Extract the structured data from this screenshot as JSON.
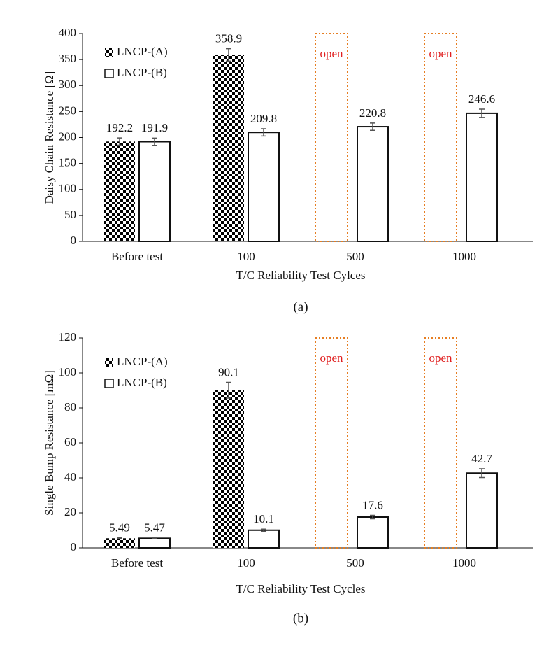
{
  "chart_data": [
    {
      "type": "bar",
      "caption": "(a)",
      "xlabel": "T/C Reliability Test Cylces",
      "ylabel": "Daisy Chain Resistance [Ω]",
      "categories": [
        "Before test",
        "100",
        "500",
        "1000"
      ],
      "series": [
        {
          "name": "LNCP-(A)",
          "color": "#000000",
          "pattern": "checker",
          "values": [
            192.2,
            358.9,
            null,
            null
          ],
          "errors": [
            7,
            12,
            null,
            null
          ],
          "notes": [
            null,
            null,
            "open",
            "open"
          ],
          "note_color": "#e01f1f",
          "note_box_color": "#e67e22"
        },
        {
          "name": "LNCP-(B)",
          "color": "#ffffff",
          "values": [
            191.9,
            209.8,
            220.8,
            246.6
          ],
          "errors": [
            7,
            7,
            7,
            8
          ]
        }
      ],
      "ylim": [
        0,
        400
      ],
      "yticks": [
        0,
        50,
        100,
        150,
        200,
        250,
        300,
        350,
        400
      ],
      "grid": false,
      "legend": "upper left"
    },
    {
      "type": "bar",
      "caption": "(b)",
      "xlabel": "T/C Reliability Test Cycles",
      "ylabel": "Single Bump Resistance [mΩ]",
      "categories": [
        "Before test",
        "100",
        "500",
        "1000"
      ],
      "series": [
        {
          "name": "LNCP-(A)",
          "color": "#000000",
          "pattern": "checker",
          "values": [
            5.49,
            90.1,
            null,
            null
          ],
          "errors": [
            0.3,
            4.5,
            null,
            null
          ],
          "notes": [
            null,
            null,
            "open",
            "open"
          ],
          "note_color": "#e01f1f",
          "note_box_color": "#e67e22"
        },
        {
          "name": "LNCP-(B)",
          "color": "#ffffff",
          "values": [
            5.47,
            10.1,
            17.6,
            42.7
          ],
          "errors": [
            0.3,
            0.6,
            1,
            2.5
          ]
        }
      ],
      "ylim": [
        0,
        120
      ],
      "yticks": [
        0,
        20,
        40,
        60,
        80,
        100,
        120
      ],
      "grid": false,
      "legend": "upper left"
    }
  ]
}
